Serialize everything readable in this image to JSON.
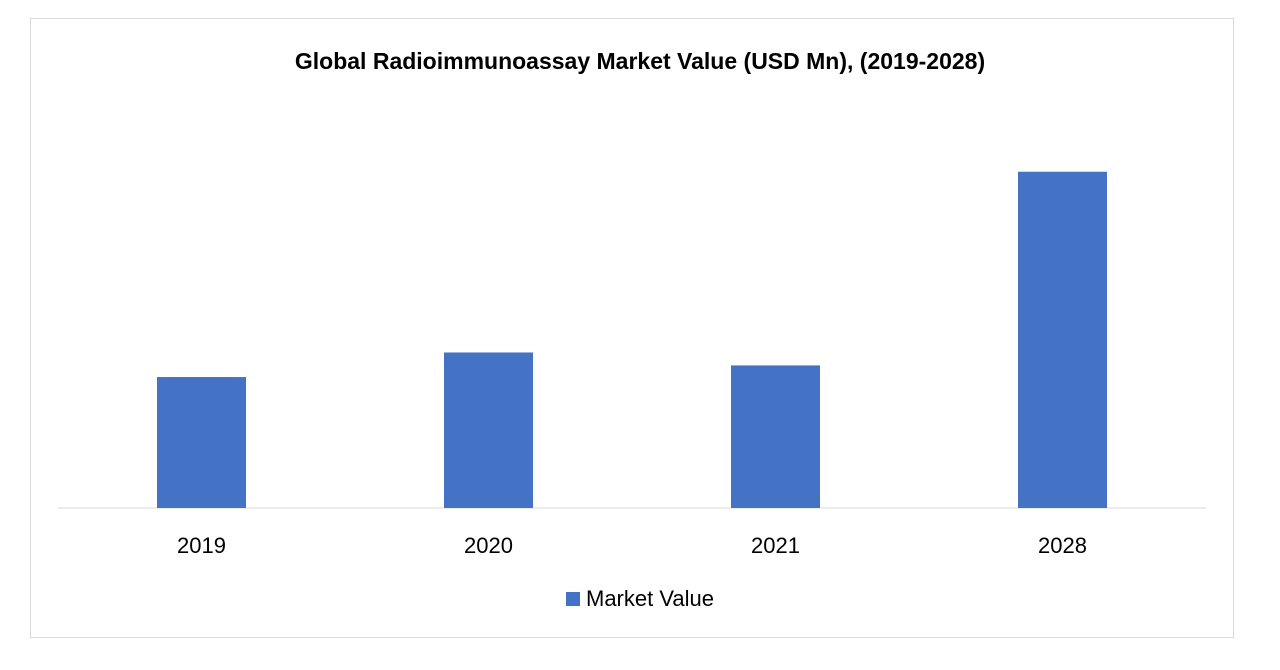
{
  "chart_data": {
    "type": "bar",
    "title": "Global Radioimmunoassay  Market Value (USD Mn), (2019-2028)",
    "categories": [
      "2019",
      "2020",
      "2021",
      "2028"
    ],
    "series": [
      {
        "name": "Market Value",
        "values": [
          40.5,
          48.1,
          44.1,
          104.0
        ],
        "color": "#4472C4"
      }
    ],
    "ylim": [
      0,
      120
    ],
    "grid": false,
    "legend_position": "bottom",
    "xlabel": "",
    "ylabel": ""
  }
}
